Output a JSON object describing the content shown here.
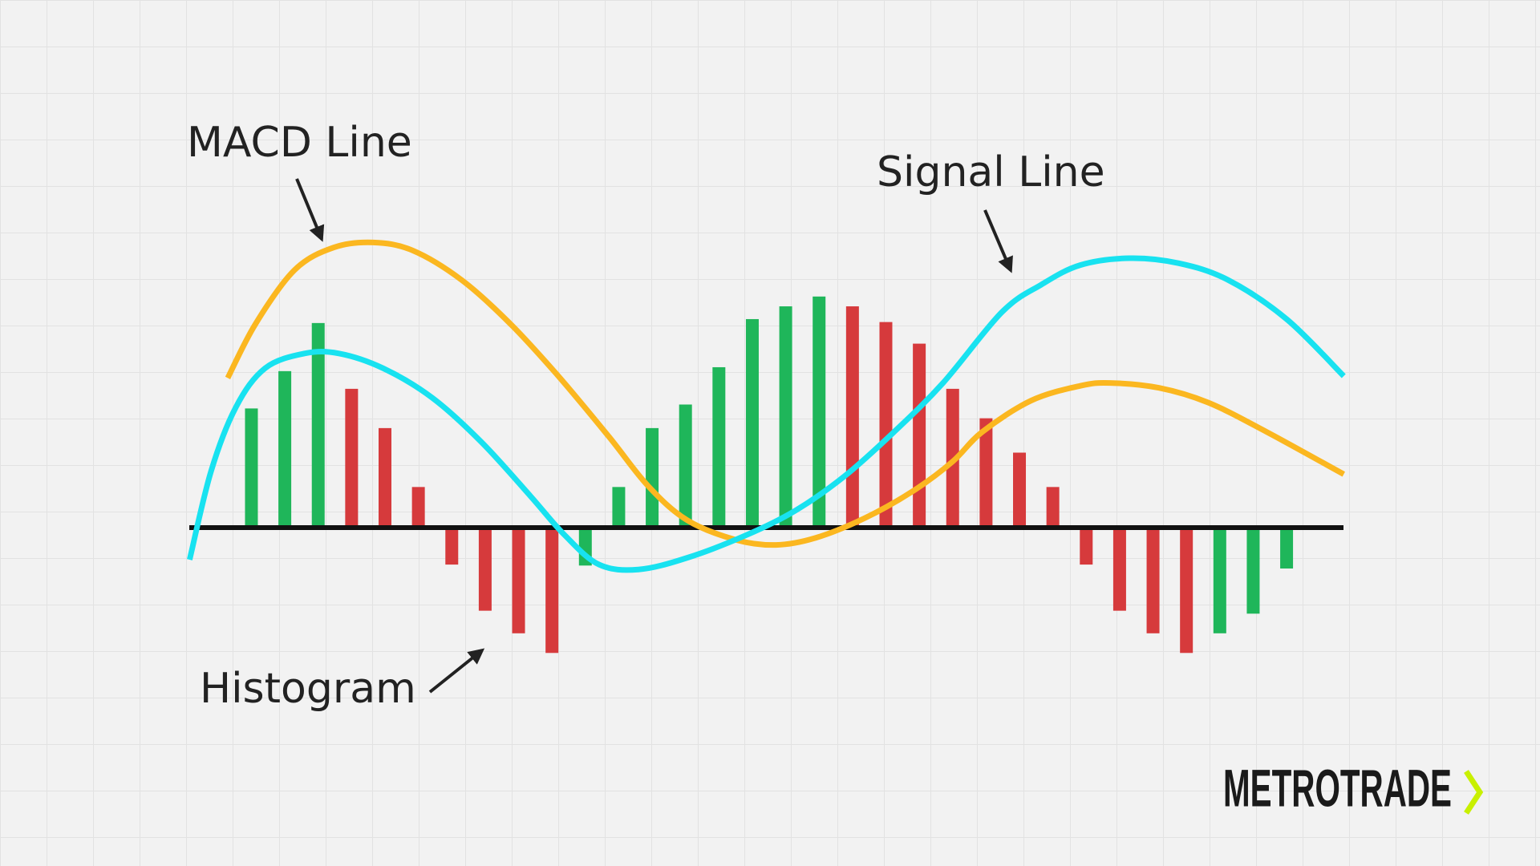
{
  "chart_data": {
    "type": "macd",
    "annotations": {
      "macd": "MACD Line",
      "signal": "Signal Line",
      "histogram": "Histogram"
    },
    "brand": "METROTRADE",
    "histogram": {
      "x": [
        0,
        1,
        2,
        3,
        4,
        5,
        6,
        7,
        8,
        9,
        10,
        11,
        12,
        13,
        14,
        15,
        16,
        17,
        18,
        19,
        20,
        21,
        22,
        23,
        24,
        25,
        26,
        27,
        28,
        29,
        30,
        31
      ],
      "values": [
        12.1,
        15.9,
        20.8,
        14.1,
        10.1,
        4.1,
        -3.8,
        -8.5,
        -10.8,
        -12.8,
        -3.9,
        4.1,
        10.1,
        12.5,
        16.3,
        21.2,
        22.5,
        23.5,
        22.5,
        20.9,
        18.7,
        14.1,
        11.1,
        7.6,
        4.1,
        -3.8,
        -8.5,
        -10.8,
        -12.8,
        -10.8,
        -8.8,
        -4.2
      ],
      "colors": [
        "#1fb65a",
        "#1fb65a",
        "#1fb65a",
        "#d63a3c",
        "#d63a3c",
        "#d63a3c",
        "#d63a3c",
        "#d63a3c",
        "#d63a3c",
        "#d63a3c",
        "#1fb65a",
        "#1fb65a",
        "#1fb65a",
        "#1fb65a",
        "#1fb65a",
        "#1fb65a",
        "#1fb65a",
        "#1fb65a",
        "#d63a3c",
        "#d63a3c",
        "#d63a3c",
        "#d63a3c",
        "#d63a3c",
        "#d63a3c",
        "#d63a3c",
        "#d63a3c",
        "#d63a3c",
        "#d63a3c",
        "#d63a3c",
        "#1fb65a",
        "#1fb65a",
        "#1fb65a"
      ]
    },
    "lines": [
      {
        "color": "#fbb720",
        "x": [
          -0.71,
          0.12,
          1.29,
          2.47,
          3.65,
          4.82,
          6.29,
          7.76,
          9.24,
          10.71,
          11.88,
          13.06,
          14.53,
          15.71,
          16.88,
          18.35,
          19.82,
          21,
          21.88,
          23.35,
          24.82,
          25.71,
          27.18,
          28.65,
          30.41,
          32.71
        ],
        "values": [
          15.2,
          20.7,
          26.2,
          28.5,
          29,
          28.2,
          25.2,
          20.7,
          15.2,
          9.2,
          4.2,
          0.7,
          -1.3,
          -1.8,
          -1.1,
          0.9,
          3.7,
          6.7,
          9.7,
          12.9,
          14.4,
          14.7,
          14.2,
          12.7,
          9.7,
          5.4
        ]
      },
      {
        "color": "#18e2f0",
        "x": [
          -1.85,
          -1.21,
          -0.47,
          0.41,
          1.59,
          2.62,
          3.94,
          5.41,
          6.88,
          8.35,
          9.38,
          10.41,
          11.59,
          13.06,
          14.82,
          16.29,
          17.76,
          19.24,
          20.71,
          22.47,
          23.65,
          24.82,
          26.29,
          27.76,
          29.24,
          31,
          32.71
        ],
        "values": [
          -3.3,
          5.7,
          12.2,
          16.2,
          17.7,
          17.7,
          16.2,
          13.2,
          8.7,
          3.2,
          -0.8,
          -3.8,
          -4.3,
          -3.1,
          -0.8,
          1.7,
          5.2,
          9.7,
          14.7,
          21.9,
          24.7,
          26.7,
          27.4,
          26.9,
          25.2,
          21.2,
          15.4
        ]
      }
    ]
  }
}
